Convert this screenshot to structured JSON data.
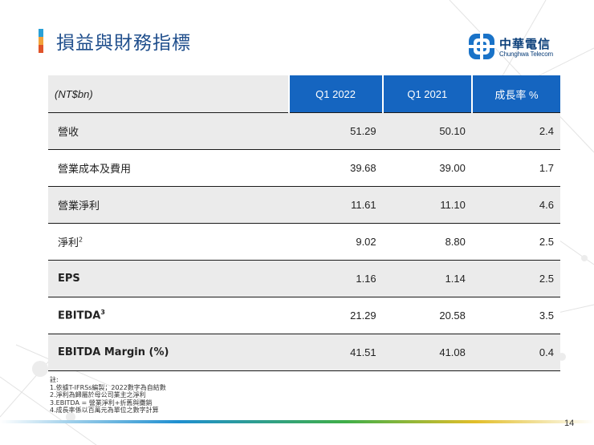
{
  "slide": {
    "title": "損益與財務指標",
    "page_number": "14"
  },
  "logo": {
    "name_zh": "中華電信",
    "name_en": "Chunghwa Telecom"
  },
  "table": {
    "unit_header": "(NT$bn)",
    "columns": [
      "Q1 2022",
      "Q1 2021",
      "成長率 %"
    ],
    "rows": [
      {
        "label": "營收",
        "sup": "",
        "bold": false,
        "q1_2022": "51.29",
        "q1_2021": "50.10",
        "growth": "2.4"
      },
      {
        "label": "營業成本及費用",
        "sup": "",
        "bold": false,
        "q1_2022": "39.68",
        "q1_2021": "39.00",
        "growth": "1.7"
      },
      {
        "label": "營業淨利",
        "sup": "",
        "bold": false,
        "q1_2022": "11.61",
        "q1_2021": "11.10",
        "growth": "4.6"
      },
      {
        "label": "淨利",
        "sup": "2",
        "bold": false,
        "q1_2022": "9.02",
        "q1_2021": "8.80",
        "growth": "2.5"
      },
      {
        "label": "EPS",
        "sup": "",
        "bold": true,
        "q1_2022": "1.16",
        "q1_2021": "1.14",
        "growth": "2.5"
      },
      {
        "label": "EBITDA",
        "sup": "3",
        "bold": true,
        "q1_2022": "21.29",
        "q1_2021": "20.58",
        "growth": "3.5"
      },
      {
        "label": "EBITDA Margin (%)",
        "sup": "",
        "bold": true,
        "q1_2022": "41.51",
        "q1_2021": "41.08",
        "growth": "0.4"
      }
    ]
  },
  "notes": {
    "heading": "註:",
    "lines": [
      "1.依據T-IFRSs編製；2022數字為自結數",
      "2.淨利為歸屬於母公司業主之淨利",
      "3.EBITDA = 營業淨利+折舊與攤銷",
      "4.成長率係以百萬元為單位之數字計算"
    ]
  }
}
